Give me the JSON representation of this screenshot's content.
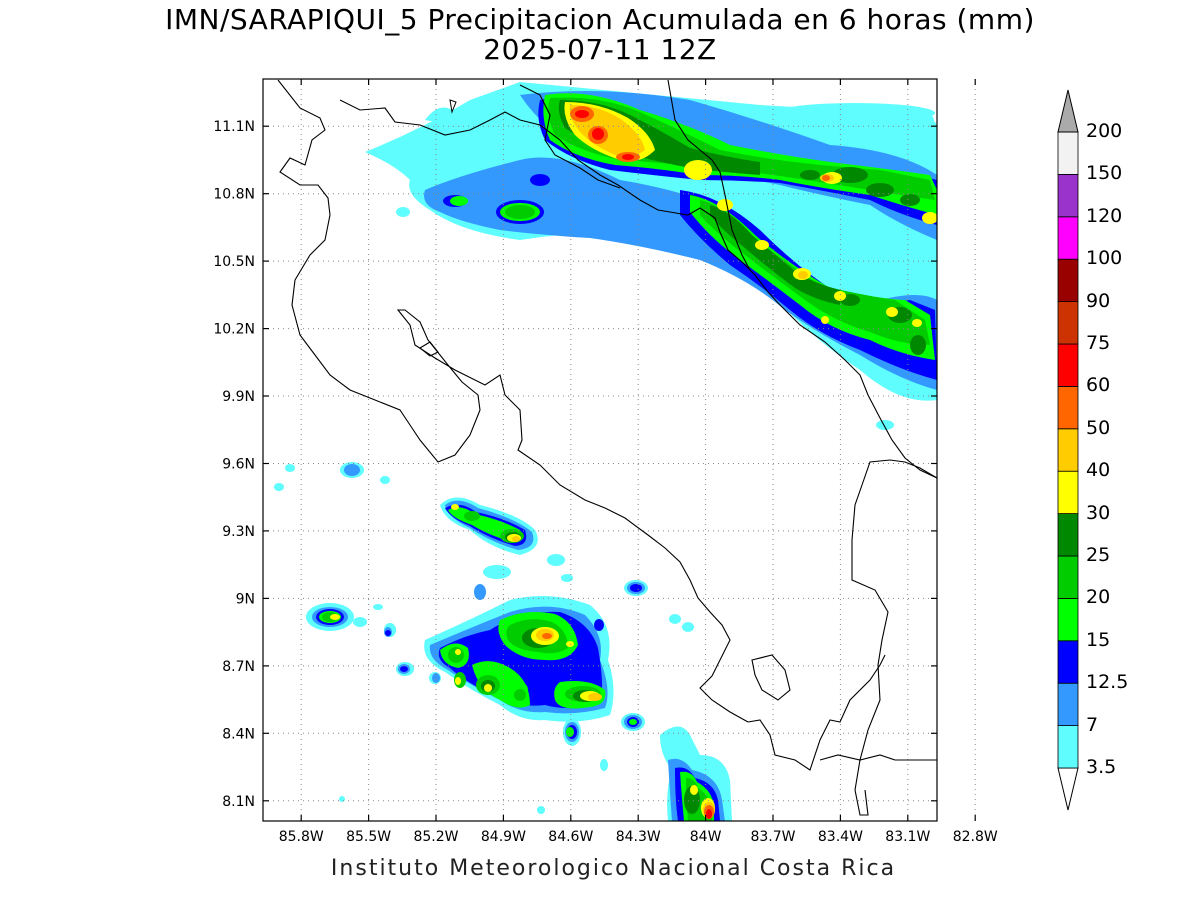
{
  "title": {
    "line1": "IMN/SARAPIQUI_5 Precipitacion Acumulada en 6 horas (mm)",
    "line2": "2025-07-11 12Z"
  },
  "credit": "Instituto Meteorologico Nacional Costa Rica",
  "axes": {
    "x_ticks": [
      {
        "label": "85.8W",
        "lon": -85.8
      },
      {
        "label": "85.5W",
        "lon": -85.5
      },
      {
        "label": "85.2W",
        "lon": -85.2
      },
      {
        "label": "84.9W",
        "lon": -84.9
      },
      {
        "label": "84.6W",
        "lon": -84.6
      },
      {
        "label": "84.3W",
        "lon": -84.3
      },
      {
        "label": "84W",
        "lon": -84.0
      },
      {
        "label": "83.7W",
        "lon": -83.7
      },
      {
        "label": "83.4W",
        "lon": -83.4
      },
      {
        "label": "83.1W",
        "lon": -83.1
      },
      {
        "label": "82.8W",
        "lon": -82.8
      }
    ],
    "y_ticks": [
      {
        "label": "11.1N",
        "lat": 11.1
      },
      {
        "label": "10.8N",
        "lat": 10.8
      },
      {
        "label": "10.5N",
        "lat": 10.5
      },
      {
        "label": "10.2N",
        "lat": 10.2
      },
      {
        "label": "9.9N",
        "lat": 9.9
      },
      {
        "label": "9.6N",
        "lat": 9.6
      },
      {
        "label": "9.3N",
        "lat": 9.3
      },
      {
        "label": "9N",
        "lat": 9.0
      },
      {
        "label": "8.7N",
        "lat": 8.7
      },
      {
        "label": "8.4N",
        "lat": 8.4
      },
      {
        "label": "8.1N",
        "lat": 8.1
      }
    ],
    "lon_range": [
      -85.97,
      -82.97
    ],
    "lat_range": [
      8.01,
      11.31
    ],
    "grid": "dotted"
  },
  "colorbar": {
    "levels": [
      {
        "label": "3.5",
        "color": "#5ffdfd"
      },
      {
        "label": "7",
        "color": "#3399ff"
      },
      {
        "label": "12.5",
        "color": "#0000ff"
      },
      {
        "label": "15",
        "color": "#00ff00"
      },
      {
        "label": "20",
        "color": "#00cc00"
      },
      {
        "label": "25",
        "color": "#008800"
      },
      {
        "label": "30",
        "color": "#ffff00"
      },
      {
        "label": "40",
        "color": "#ffcc00"
      },
      {
        "label": "50",
        "color": "#ff6600"
      },
      {
        "label": "60",
        "color": "#ff0000"
      },
      {
        "label": "75",
        "color": "#cc3300"
      },
      {
        "label": "90",
        "color": "#990000"
      },
      {
        "label": "100",
        "color": "#ff00ff"
      },
      {
        "label": "120",
        "color": "#9933cc"
      },
      {
        "label": "150",
        "color": "#f2f2f2"
      },
      {
        "label": "200",
        "color": "#aaaaaa"
      }
    ]
  }
}
